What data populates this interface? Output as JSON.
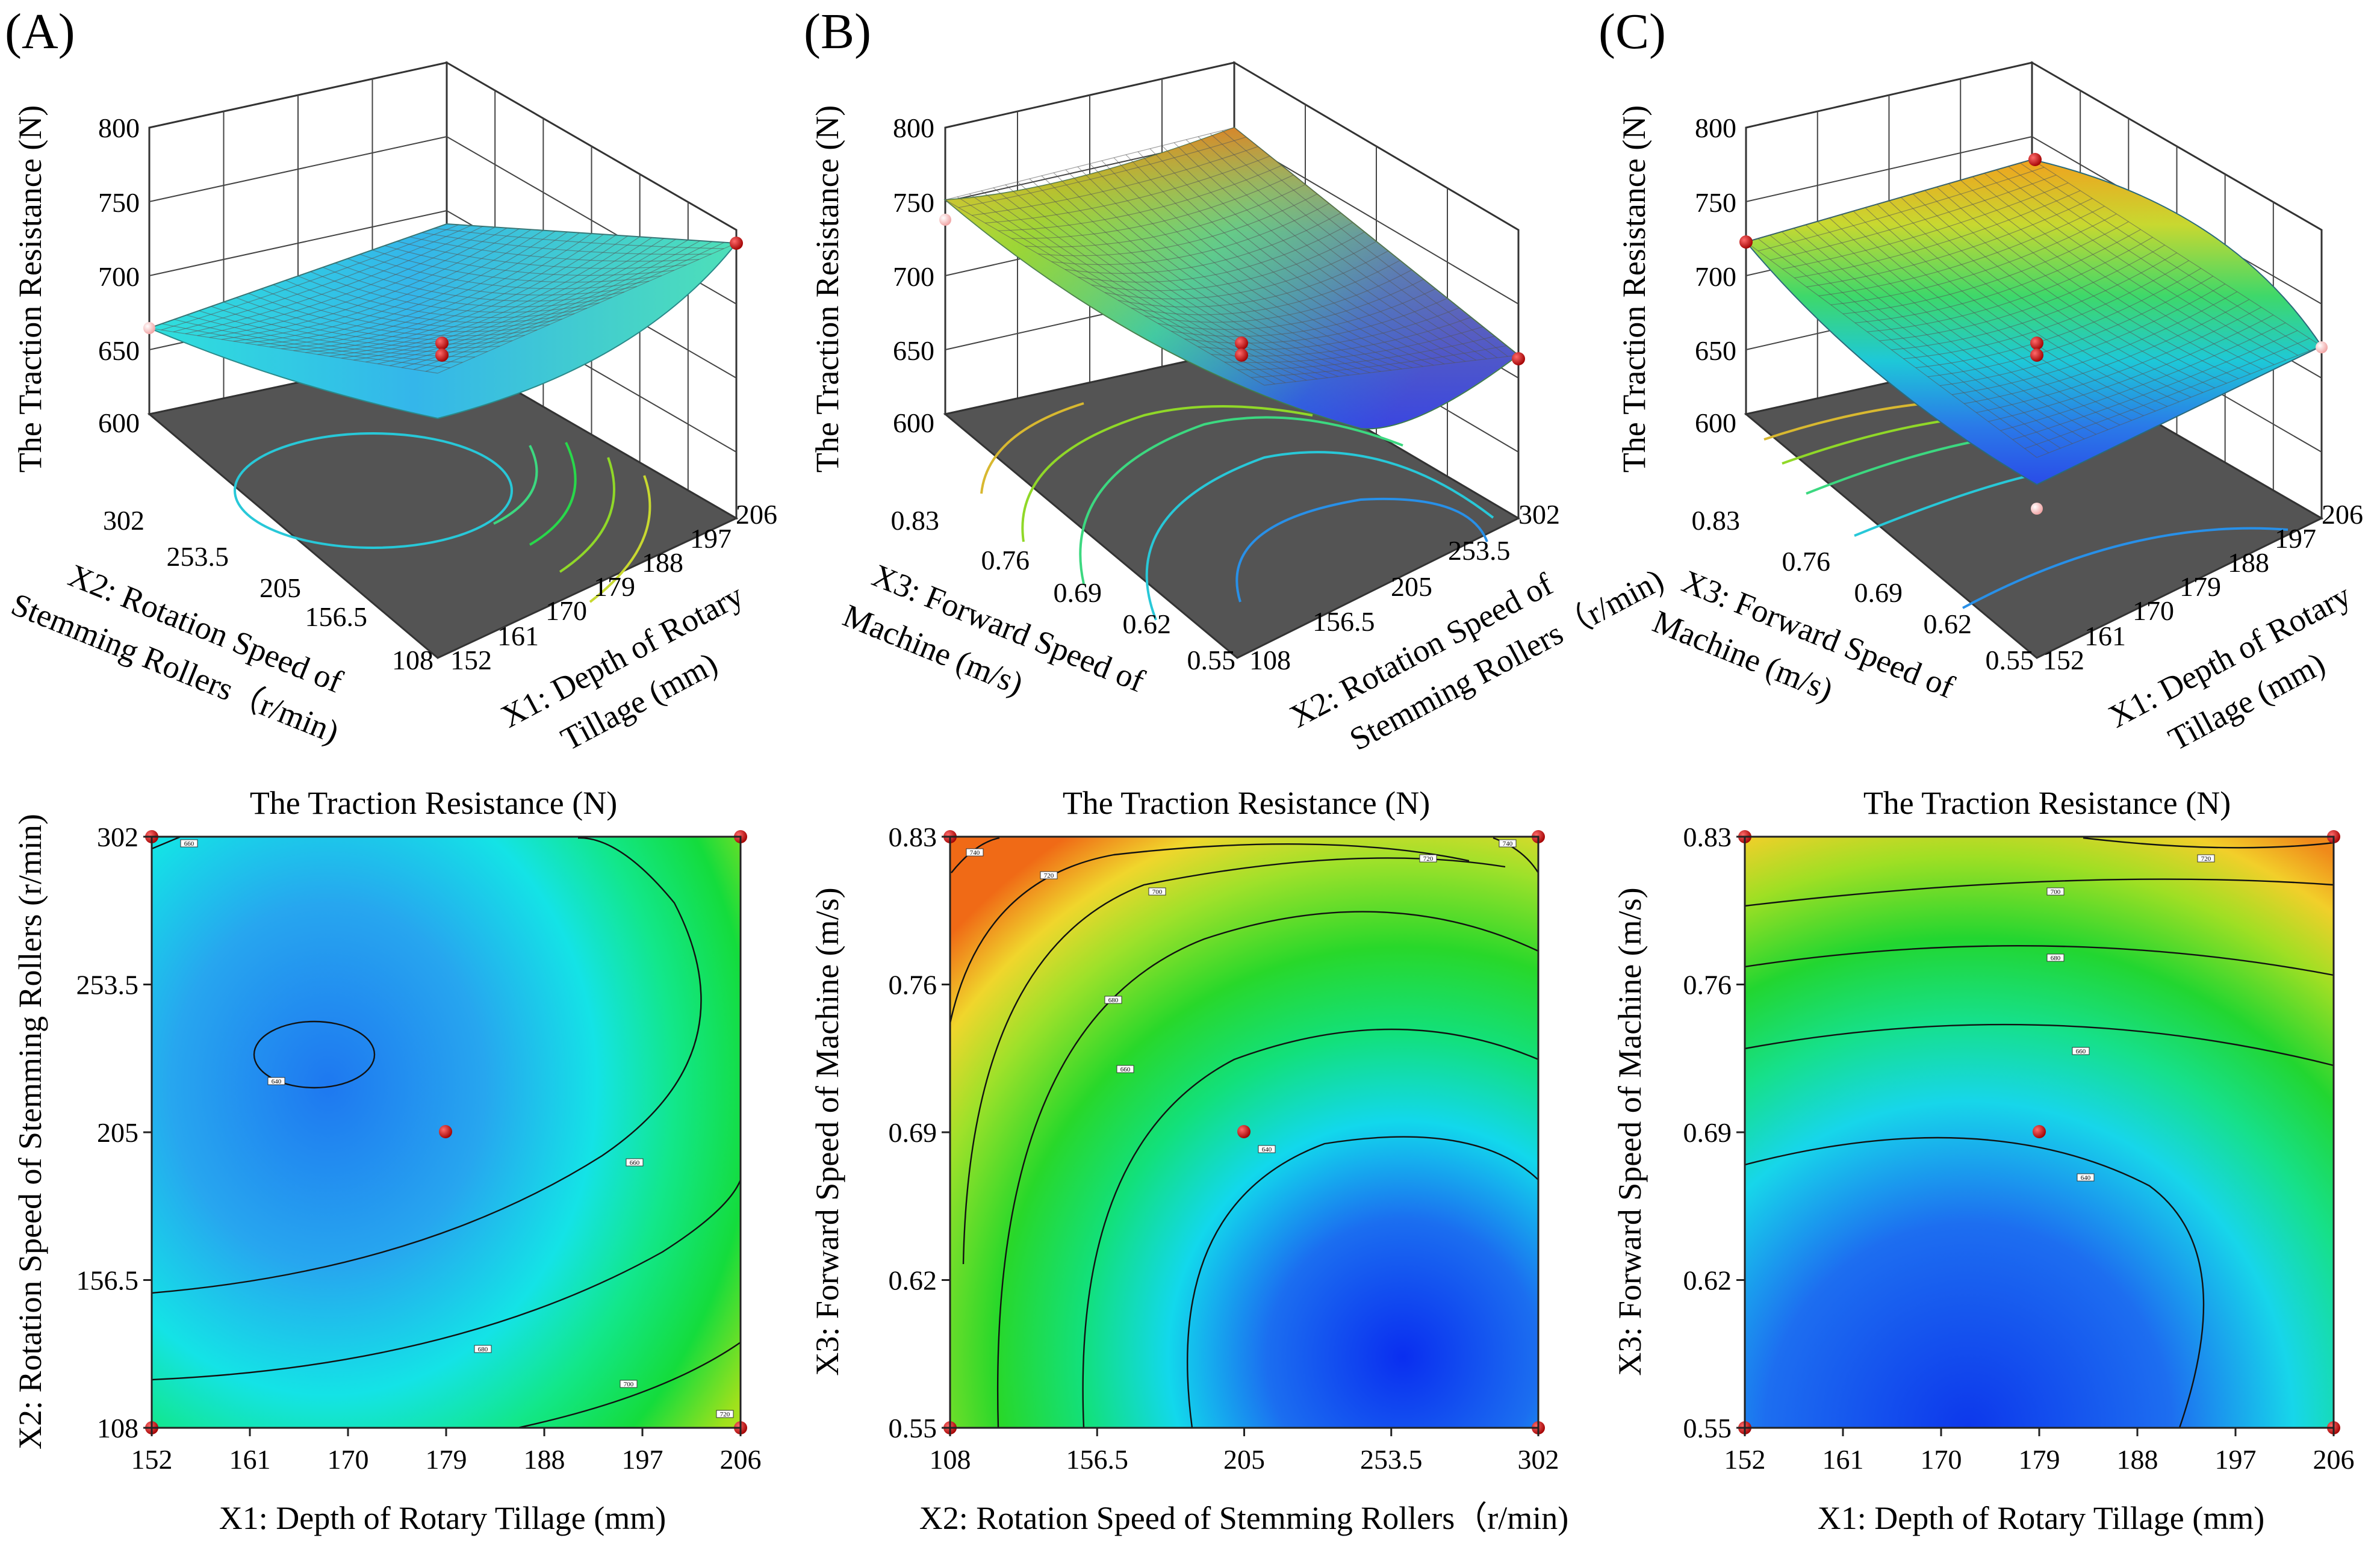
{
  "chart_data": [
    {
      "panel": "(A)",
      "type": "surface",
      "zlabel": "The Traction Resistance (N)",
      "zticks": [
        "600",
        "650",
        "700",
        "750",
        "800"
      ],
      "zlim": [
        600,
        800
      ],
      "xlabel": "X1: Depth of Rotary Tillage (mm)",
      "xticks": [
        "152",
        "161",
        "170",
        "179",
        "188",
        "197",
        "206"
      ],
      "ylabel": "X2: Rotation Speed of Stemming Rollers (r/min)",
      "yticks": [
        "108",
        "156.5",
        "205",
        "253.5",
        "302"
      ],
      "xlabel_lines": [
        "X1: Depth of Rotary",
        "Tillage (mm)"
      ],
      "ylabel_lines": [
        "X2: Rotation Speed of",
        "Stemming Rollers（r/min)"
      ],
      "design_points": [
        [
          152,
          302,
          660
        ],
        [
          206,
          108,
          720
        ],
        [
          179,
          205,
          645
        ],
        [
          179,
          205,
          650
        ]
      ]
    },
    {
      "panel": "(B)",
      "type": "surface",
      "zlabel": "The Traction Resistance (N)",
      "zticks": [
        "600",
        "650",
        "700",
        "750",
        "800"
      ],
      "zlim": [
        600,
        800
      ],
      "xlabel": "X3: Forward Speed of Machine (m/s)",
      "xticks": [
        "0.55",
        "0.62",
        "0.69",
        "0.76",
        "0.83"
      ],
      "ylabel": "X2: Rotation Speed of Stemming Rollers (r/min)",
      "yticks": [
        "108",
        "156.5",
        "205",
        "253.5",
        "302"
      ],
      "xlabel_lines": [
        "X3: Forward Speed of",
        "Machine (m/s)"
      ],
      "ylabel_lines": [
        "X2: Rotation Speed of",
        "Stemming Rollers（r/min)"
      ],
      "design_points": [
        [
          0.83,
          108,
          740
        ],
        [
          0.55,
          302,
          640
        ],
        [
          0.69,
          205,
          645
        ],
        [
          0.69,
          205,
          650
        ]
      ]
    },
    {
      "panel": "(C)",
      "type": "surface",
      "zlabel": "The Traction Resistance (N)",
      "zticks": [
        "600",
        "650",
        "700",
        "750",
        "800"
      ],
      "zlim": [
        600,
        800
      ],
      "xlabel": "X3: Forward Speed of Machine (m/s)",
      "xticks": [
        "0.55",
        "0.62",
        "0.69",
        "0.76",
        "0.83"
      ],
      "ylabel": "X1: Depth of Rotary Tillage (mm)",
      "yticks": [
        "152",
        "161",
        "170",
        "179",
        "188",
        "197",
        "206"
      ],
      "xlabel_lines": [
        "X3: Forward Speed of",
        "Machine (m/s)"
      ],
      "ylabel_lines": [
        "X1: Depth of Rotary",
        "Tillage (mm)"
      ],
      "design_points": [
        [
          0.83,
          206,
          790
        ],
        [
          0.83,
          152,
          720
        ],
        [
          0.55,
          206,
          650
        ],
        [
          0.55,
          152,
          600
        ],
        [
          0.69,
          179,
          645
        ],
        [
          0.69,
          179,
          650
        ]
      ]
    },
    {
      "panel": "A-contour",
      "type": "contour",
      "title": "The Traction Resistance (N)",
      "xlabel": "X1: Depth of Rotary Tillage (mm)",
      "xticks": [
        "152",
        "161",
        "170",
        "179",
        "188",
        "197",
        "206"
      ],
      "ylabel": "X2: Rotation Speed of Stemming Rollers (r/min)",
      "yticks": [
        "108",
        "156.5",
        "205",
        "253.5",
        "302"
      ],
      "contour_labels": [
        "640",
        "660",
        "680",
        "700",
        "720"
      ]
    },
    {
      "panel": "B-contour",
      "type": "contour",
      "title": "The Traction Resistance (N)",
      "xlabel": "X2: Rotation Speed of Stemming Rollers（r/min)",
      "xticks": [
        "108",
        "156.5",
        "205",
        "253.5",
        "302"
      ],
      "ylabel": "X3: Forward Speed of Machine (m/s)",
      "yticks": [
        "0.55",
        "0.62",
        "0.69",
        "0.76",
        "0.83"
      ],
      "contour_labels": [
        "640",
        "660",
        "680",
        "700",
        "720",
        "740"
      ]
    },
    {
      "panel": "C-contour",
      "type": "contour",
      "title": "The Traction Resistance (N)",
      "xlabel": "X1: Depth of Rotary Tillage (mm)",
      "xticks": [
        "152",
        "161",
        "170",
        "179",
        "188",
        "197",
        "206"
      ],
      "ylabel": "X3: Forward Speed of Machine (m/s)",
      "yticks": [
        "0.55",
        "0.62",
        "0.69",
        "0.76",
        "0.83"
      ],
      "contour_labels": [
        "640",
        "660",
        "680",
        "700",
        "720"
      ]
    }
  ]
}
